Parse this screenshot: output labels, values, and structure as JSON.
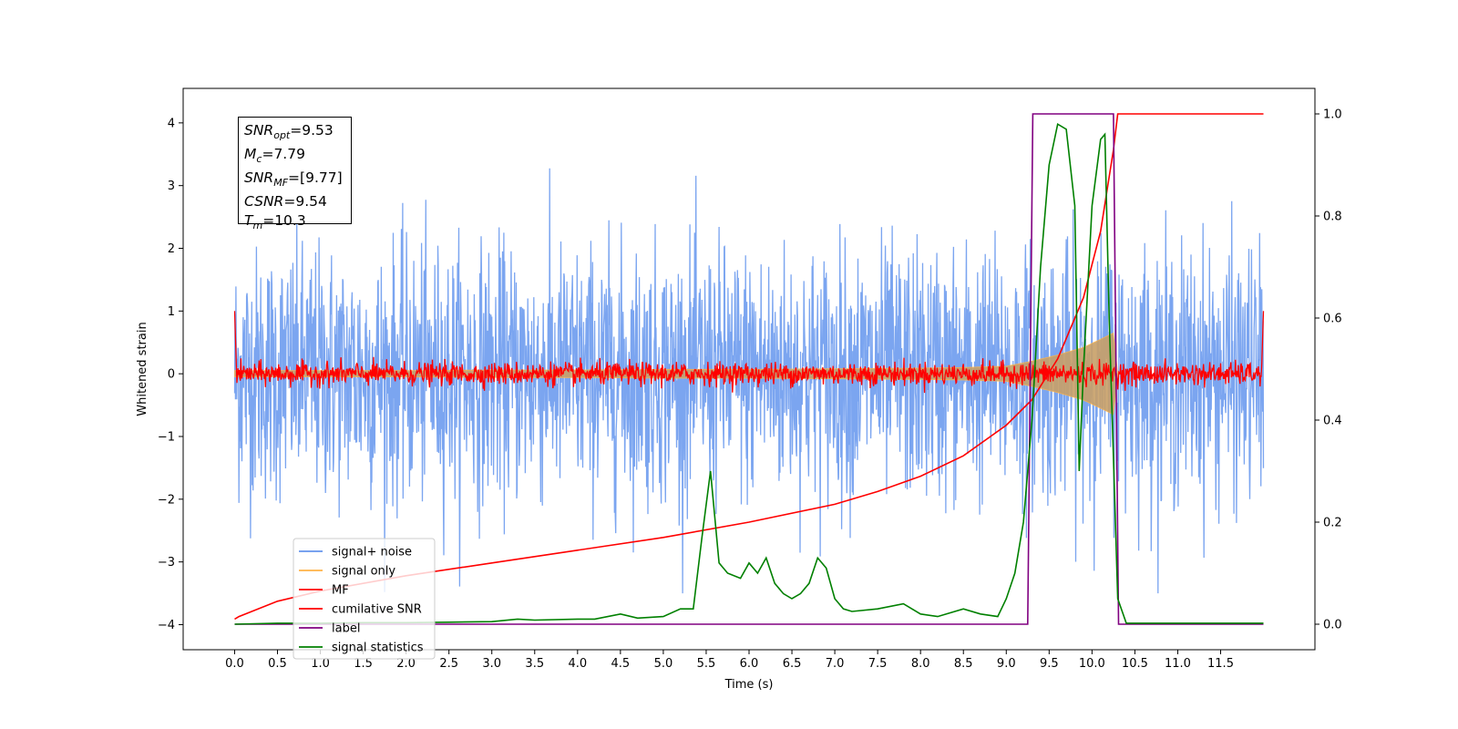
{
  "chart_data": {
    "type": "line",
    "xlabel": "Time (s)",
    "ylabel": "Whitened strain",
    "xlim": [
      -0.6,
      12.6
    ],
    "ylim": [
      -4.4,
      4.55
    ],
    "ylim_right": [
      -0.05,
      1.05
    ],
    "x_ticks": [
      "0.0",
      "0.5",
      "1.0",
      "1.5",
      "2.0",
      "2.5",
      "3.0",
      "3.5",
      "4.0",
      "4.5",
      "5.0",
      "5.5",
      "6.0",
      "6.5",
      "7.0",
      "7.5",
      "8.0",
      "8.5",
      "9.0",
      "9.5",
      "10.0",
      "10.5",
      "11.0",
      "11.5"
    ],
    "y_ticks": [
      "4",
      "3",
      "2",
      "1",
      "0",
      "−1",
      "−2",
      "−3",
      "−4"
    ],
    "y_ticks_right": [
      "1.0",
      "0.8",
      "0.6",
      "0.4",
      "0.2",
      "0.0"
    ],
    "legend_position": "lower-left",
    "annotation": {
      "snr_opt": "9.53",
      "mc": "7.79",
      "snr_mf": "[9.77]",
      "csnr": "9.54",
      "tm": "10.3"
    },
    "series": [
      {
        "name": "signal+ noise",
        "color": "#6495ED",
        "axis": "left",
        "description_noise_sigma": 1.0,
        "x": [
          0,
          12
        ],
        "envelope_y": [
          -3.5,
          4.2
        ]
      },
      {
        "name": "signal only",
        "color": "#FFB347",
        "axis": "left",
        "x": [
          0,
          1,
          2,
          3,
          4,
          5,
          6,
          7,
          8,
          8.5,
          9,
          9.3,
          9.6,
          9.9,
          10.1,
          10.25,
          10.3
        ],
        "amplitude": [
          0.05,
          0.05,
          0.05,
          0.06,
          0.06,
          0.07,
          0.07,
          0.08,
          0.09,
          0.1,
          0.12,
          0.2,
          0.3,
          0.42,
          0.55,
          0.65,
          0
        ]
      },
      {
        "name": "MF",
        "color": "#FF0000",
        "axis": "left",
        "x": [
          0,
          12
        ],
        "center": 0.0,
        "spread": 0.15
      },
      {
        "name": "cumilative SNR",
        "color": "#FF0000",
        "axis": "right",
        "x": [
          0,
          0.05,
          0.5,
          1,
          2,
          3,
          4,
          5,
          6,
          7,
          7.5,
          8,
          8.5,
          9,
          9.3,
          9.6,
          9.9,
          10.1,
          10.25,
          10.3,
          12
        ],
        "y": [
          0.01,
          0.015,
          0.045,
          0.065,
          0.095,
          0.12,
          0.145,
          0.17,
          0.2,
          0.235,
          0.26,
          0.29,
          0.33,
          0.39,
          0.44,
          0.52,
          0.64,
          0.77,
          0.93,
          1.0,
          1.0
        ]
      },
      {
        "name": "label",
        "color": "#800080",
        "axis": "right",
        "x": [
          0,
          9.25,
          9.31,
          10.25,
          10.31,
          12
        ],
        "y": [
          0,
          0,
          1,
          1,
          0,
          0
        ]
      },
      {
        "name": "signal statistics",
        "color": "#008000",
        "axis": "right",
        "x": [
          0,
          0.5,
          1,
          1.5,
          2,
          2.5,
          3,
          3.3,
          3.5,
          4,
          4.2,
          4.5,
          4.7,
          5,
          5.2,
          5.35,
          5.45,
          5.55,
          5.65,
          5.75,
          5.9,
          6.0,
          6.1,
          6.2,
          6.3,
          6.4,
          6.5,
          6.6,
          6.7,
          6.8,
          6.9,
          7.0,
          7.1,
          7.2,
          7.5,
          7.8,
          8.0,
          8.2,
          8.5,
          8.7,
          8.9,
          9.0,
          9.1,
          9.2,
          9.3,
          9.4,
          9.5,
          9.6,
          9.7,
          9.8,
          9.85,
          9.9,
          10.0,
          10.1,
          10.15,
          10.2,
          10.3,
          10.4,
          12
        ],
        "y": [
          0,
          0.002,
          0.002,
          0.003,
          0.003,
          0.004,
          0.005,
          0.01,
          0.008,
          0.01,
          0.01,
          0.02,
          0.012,
          0.015,
          0.03,
          0.03,
          0.17,
          0.3,
          0.12,
          0.1,
          0.09,
          0.12,
          0.1,
          0.13,
          0.08,
          0.06,
          0.05,
          0.06,
          0.08,
          0.13,
          0.11,
          0.05,
          0.03,
          0.025,
          0.03,
          0.04,
          0.02,
          0.015,
          0.03,
          0.02,
          0.015,
          0.05,
          0.1,
          0.2,
          0.4,
          0.7,
          0.9,
          0.98,
          0.97,
          0.82,
          0.3,
          0.5,
          0.82,
          0.95,
          0.96,
          0.6,
          0.05,
          0.002,
          0.002
        ]
      }
    ]
  }
}
